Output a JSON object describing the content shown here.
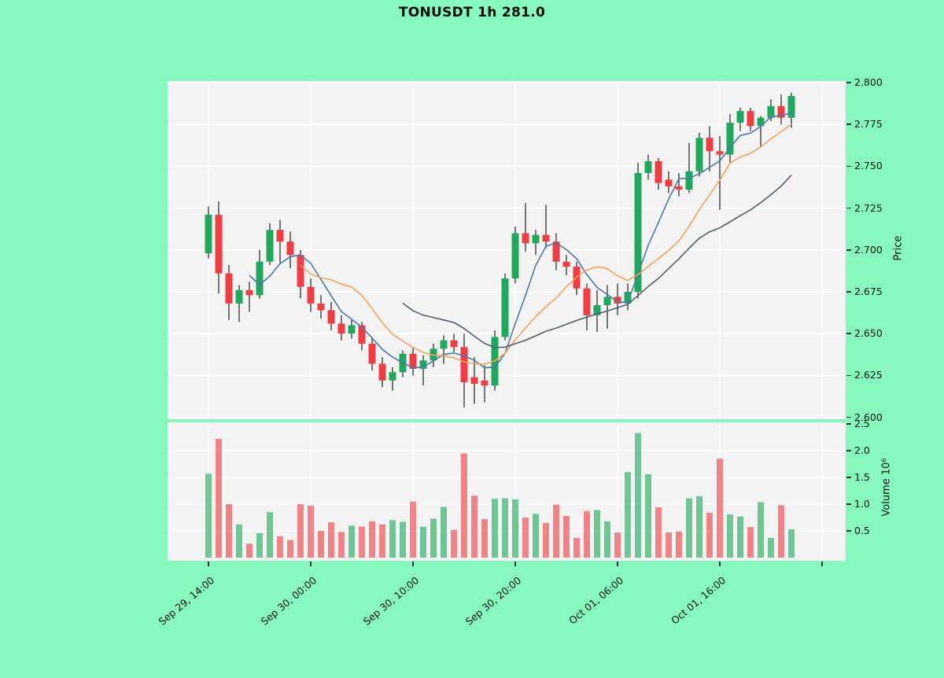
{
  "title": "TONUSDT 1h 281.0",
  "colors": {
    "figure_background": "#86f8bd",
    "panel_background": "#f3f3f3",
    "grid": "#ffffff",
    "text": "#111111",
    "candle_up": "#1fa85e",
    "candle_down": "#ee3d43",
    "wick": "#222222",
    "ma_fast": "#4c78a8",
    "ma_mid": "#f5a15c",
    "ma_slow": "#515f6e"
  },
  "chart_data": {
    "type": "candlestick",
    "title": "TONUSDT 1h 281.0",
    "symbol": "TONUSDT",
    "interval": "1h",
    "price_axis": {
      "label": "Price",
      "tick_labels": [
        "2.800",
        "2.775",
        "2.750",
        "2.725",
        "2.700",
        "2.675",
        "2.650",
        "2.625",
        "2.600"
      ],
      "range": [
        2.5989,
        2.8009
      ],
      "side": "right"
    },
    "volume_axis": {
      "label": "Volume 10⁶",
      "tick_labels": [
        "2.5",
        "2.0",
        "1.5",
        "1.0",
        "0.5"
      ],
      "range": [
        0,
        2.59
      ],
      "side": "right"
    },
    "x_axis": {
      "ticks": [
        {
          "hour": 0,
          "label": "Sep 29, 14:00"
        },
        {
          "hour": 10,
          "label": "Sep 30, 00:00"
        },
        {
          "hour": 20,
          "label": "Sep 30, 10:00"
        },
        {
          "hour": 30,
          "label": "Sep 30, 20:00"
        },
        {
          "hour": 40,
          "label": "Oct 01, 06:00"
        },
        {
          "hour": 50,
          "label": "Oct 01, 16:00"
        }
      ],
      "extra_gridline_hours": [
        60
      ],
      "label_rotation_deg": 40
    },
    "moving_averages": [
      {
        "name": "ma-fast",
        "window": 5,
        "color": "#4c78a8"
      },
      {
        "name": "ma-mid",
        "window": 10,
        "color": "#f5a15c"
      },
      {
        "name": "ma-slow",
        "window": 20,
        "color": "#515f6e"
      }
    ],
    "legend": "none",
    "grid": "on",
    "candles": [
      {
        "t": "Sep 29, 14:00",
        "o": 2.698,
        "h": 2.726,
        "l": 2.695,
        "c": 2.721,
        "v": 1.57
      },
      {
        "t": "Sep 29, 15:00",
        "o": 2.721,
        "h": 2.729,
        "l": 2.674,
        "c": 2.686,
        "v": 2.22
      },
      {
        "t": "Sep 29, 16:00",
        "o": 2.686,
        "h": 2.691,
        "l": 2.658,
        "c": 2.668,
        "v": 1.0
      },
      {
        "t": "Sep 29, 17:00",
        "o": 2.668,
        "h": 2.679,
        "l": 2.657,
        "c": 2.676,
        "v": 0.62
      },
      {
        "t": "Sep 29, 18:00",
        "o": 2.676,
        "h": 2.681,
        "l": 2.663,
        "c": 2.673,
        "v": 0.26
      },
      {
        "t": "Sep 29, 19:00",
        "o": 2.673,
        "h": 2.7,
        "l": 2.671,
        "c": 2.693,
        "v": 0.46
      },
      {
        "t": "Sep 29, 20:00",
        "o": 2.693,
        "h": 2.716,
        "l": 2.691,
        "c": 2.712,
        "v": 0.85
      },
      {
        "t": "Sep 29, 21:00",
        "o": 2.712,
        "h": 2.718,
        "l": 2.692,
        "c": 2.705,
        "v": 0.4
      },
      {
        "t": "Sep 29, 22:00",
        "o": 2.705,
        "h": 2.711,
        "l": 2.689,
        "c": 2.697,
        "v": 0.33
      },
      {
        "t": "Sep 29, 23:00",
        "o": 2.697,
        "h": 2.7,
        "l": 2.671,
        "c": 2.678,
        "v": 1.0
      },
      {
        "t": "Sep 30, 00:00",
        "o": 2.678,
        "h": 2.683,
        "l": 2.663,
        "c": 2.668,
        "v": 0.97
      },
      {
        "t": "Sep 30, 01:00",
        "o": 2.668,
        "h": 2.673,
        "l": 2.659,
        "c": 2.664,
        "v": 0.5
      },
      {
        "t": "Sep 30, 02:00",
        "o": 2.664,
        "h": 2.669,
        "l": 2.652,
        "c": 2.656,
        "v": 0.66
      },
      {
        "t": "Sep 30, 03:00",
        "o": 2.656,
        "h": 2.661,
        "l": 2.646,
        "c": 2.65,
        "v": 0.48
      },
      {
        "t": "Sep 30, 04:00",
        "o": 2.65,
        "h": 2.659,
        "l": 2.647,
        "c": 2.655,
        "v": 0.6
      },
      {
        "t": "Sep 30, 05:00",
        "o": 2.655,
        "h": 2.657,
        "l": 2.64,
        "c": 2.644,
        "v": 0.58
      },
      {
        "t": "Sep 30, 06:00",
        "o": 2.644,
        "h": 2.648,
        "l": 2.628,
        "c": 2.632,
        "v": 0.68
      },
      {
        "t": "Sep 30, 07:00",
        "o": 2.632,
        "h": 2.636,
        "l": 2.618,
        "c": 2.622,
        "v": 0.62
      },
      {
        "t": "Sep 30, 08:00",
        "o": 2.622,
        "h": 2.63,
        "l": 2.616,
        "c": 2.627,
        "v": 0.7
      },
      {
        "t": "Sep 30, 09:00",
        "o": 2.627,
        "h": 2.64,
        "l": 2.624,
        "c": 2.638,
        "v": 0.67
      },
      {
        "t": "Sep 30, 10:00",
        "o": 2.638,
        "h": 2.642,
        "l": 2.625,
        "c": 2.629,
        "v": 1.05
      },
      {
        "t": "Sep 30, 11:00",
        "o": 2.629,
        "h": 2.637,
        "l": 2.619,
        "c": 2.634,
        "v": 0.58
      },
      {
        "t": "Sep 30, 12:00",
        "o": 2.634,
        "h": 2.644,
        "l": 2.63,
        "c": 2.641,
        "v": 0.73
      },
      {
        "t": "Sep 30, 13:00",
        "o": 2.641,
        "h": 2.649,
        "l": 2.632,
        "c": 2.646,
        "v": 0.95
      },
      {
        "t": "Sep 30, 14:00",
        "o": 2.646,
        "h": 2.65,
        "l": 2.639,
        "c": 2.642,
        "v": 0.52
      },
      {
        "t": "Sep 30, 15:00",
        "o": 2.642,
        "h": 2.65,
        "l": 2.606,
        "c": 2.621,
        "v": 1.95
      },
      {
        "t": "Sep 30, 16:00",
        "o": 2.624,
        "h": 2.636,
        "l": 2.608,
        "c": 2.62,
        "v": 1.16
      },
      {
        "t": "Sep 30, 17:00",
        "o": 2.622,
        "h": 2.631,
        "l": 2.609,
        "c": 2.619,
        "v": 0.72
      },
      {
        "t": "Sep 30, 18:00",
        "o": 2.619,
        "h": 2.652,
        "l": 2.616,
        "c": 2.648,
        "v": 1.1
      },
      {
        "t": "Sep 30, 19:00",
        "o": 2.648,
        "h": 2.686,
        "l": 2.646,
        "c": 2.683,
        "v": 1.11
      },
      {
        "t": "Sep 30, 20:00",
        "o": 2.683,
        "h": 2.714,
        "l": 2.68,
        "c": 2.71,
        "v": 1.09
      },
      {
        "t": "Sep 30, 21:00",
        "o": 2.71,
        "h": 2.728,
        "l": 2.699,
        "c": 2.704,
        "v": 0.75
      },
      {
        "t": "Sep 30, 22:00",
        "o": 2.704,
        "h": 2.712,
        "l": 2.697,
        "c": 2.709,
        "v": 0.82
      },
      {
        "t": "Sep 30, 23:00",
        "o": 2.709,
        "h": 2.727,
        "l": 2.701,
        "c": 2.705,
        "v": 0.65
      },
      {
        "t": "Oct 01, 00:00",
        "o": 2.705,
        "h": 2.71,
        "l": 2.688,
        "c": 2.693,
        "v": 0.99
      },
      {
        "t": "Oct 01, 01:00",
        "o": 2.693,
        "h": 2.697,
        "l": 2.685,
        "c": 2.69,
        "v": 0.78
      },
      {
        "t": "Oct 01, 02:00",
        "o": 2.69,
        "h": 2.693,
        "l": 2.673,
        "c": 2.677,
        "v": 0.37
      },
      {
        "t": "Oct 01, 03:00",
        "o": 2.677,
        "h": 2.68,
        "l": 2.652,
        "c": 2.661,
        "v": 0.87
      },
      {
        "t": "Oct 01, 04:00",
        "o": 2.661,
        "h": 2.676,
        "l": 2.651,
        "c": 2.667,
        "v": 0.89
      },
      {
        "t": "Oct 01, 05:00",
        "o": 2.667,
        "h": 2.679,
        "l": 2.653,
        "c": 2.672,
        "v": 0.68
      },
      {
        "t": "Oct 01, 06:00",
        "o": 2.672,
        "h": 2.68,
        "l": 2.661,
        "c": 2.668,
        "v": 0.47
      },
      {
        "t": "Oct 01, 07:00",
        "o": 2.668,
        "h": 2.68,
        "l": 2.664,
        "c": 2.675,
        "v": 1.6
      },
      {
        "t": "Oct 01, 08:00",
        "o": 2.675,
        "h": 2.752,
        "l": 2.671,
        "c": 2.746,
        "v": 2.33
      },
      {
        "t": "Oct 01, 09:00",
        "o": 2.746,
        "h": 2.757,
        "l": 2.742,
        "c": 2.753,
        "v": 1.56
      },
      {
        "t": "Oct 01, 10:00",
        "o": 2.753,
        "h": 2.755,
        "l": 2.736,
        "c": 2.74,
        "v": 0.94
      },
      {
        "t": "Oct 01, 11:00",
        "o": 2.742,
        "h": 2.747,
        "l": 2.734,
        "c": 2.738,
        "v": 0.47
      },
      {
        "t": "Oct 01, 12:00",
        "o": 2.738,
        "h": 2.746,
        "l": 2.732,
        "c": 2.736,
        "v": 0.49
      },
      {
        "t": "Oct 01, 13:00",
        "o": 2.736,
        "h": 2.764,
        "l": 2.734,
        "c": 2.747,
        "v": 1.11
      },
      {
        "t": "Oct 01, 14:00",
        "o": 2.747,
        "h": 2.77,
        "l": 2.744,
        "c": 2.767,
        "v": 1.15
      },
      {
        "t": "Oct 01, 15:00",
        "o": 2.767,
        "h": 2.774,
        "l": 2.747,
        "c": 2.759,
        "v": 0.84
      },
      {
        "t": "Oct 01, 16:00",
        "o": 2.759,
        "h": 2.768,
        "l": 2.724,
        "c": 2.757,
        "v": 1.85
      },
      {
        "t": "Oct 01, 17:00",
        "o": 2.757,
        "h": 2.781,
        "l": 2.752,
        "c": 2.776,
        "v": 0.81
      },
      {
        "t": "Oct 01, 18:00",
        "o": 2.776,
        "h": 2.785,
        "l": 2.771,
        "c": 2.783,
        "v": 0.77
      },
      {
        "t": "Oct 01, 19:00",
        "o": 2.783,
        "h": 2.785,
        "l": 2.771,
        "c": 2.774,
        "v": 0.57
      },
      {
        "t": "Oct 01, 20:00",
        "o": 2.774,
        "h": 2.78,
        "l": 2.762,
        "c": 2.779,
        "v": 1.04
      },
      {
        "t": "Oct 01, 21:00",
        "o": 2.779,
        "h": 2.79,
        "l": 2.777,
        "c": 2.786,
        "v": 0.37
      },
      {
        "t": "Oct 01, 22:00",
        "o": 2.786,
        "h": 2.793,
        "l": 2.775,
        "c": 2.779,
        "v": 0.98
      },
      {
        "t": "Oct 01, 23:00",
        "o": 2.779,
        "h": 2.794,
        "l": 2.773,
        "c": 2.792,
        "v": 0.53
      }
    ]
  }
}
